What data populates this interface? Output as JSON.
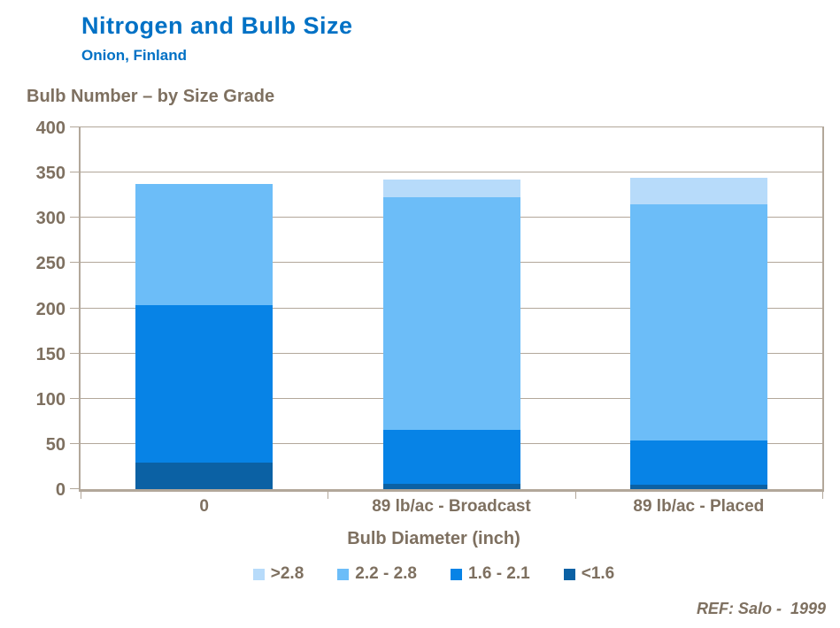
{
  "header": {
    "title": "Nitrogen and Bulb Size",
    "subtitle": "Onion, Finland"
  },
  "chart_title": "Bulb Number – by Size Grade",
  "footer": {
    "ref": "REF: Salo -  1999"
  },
  "colors": {
    "title_blue": "#0071C5",
    "label_brown": "#7E7060",
    "grid": "#B2A79A",
    "background": "#FFFFFF"
  },
  "chart_data": {
    "type": "bar",
    "stacked": true,
    "title": "Bulb Number – by Size Grade",
    "categories": [
      "0",
      "89 lb/ac - Broadcast",
      "89 lb/ac - Placed"
    ],
    "series": [
      {
        "name": "<1.6",
        "color": "#0B61A4",
        "values": [
          29,
          6,
          5
        ]
      },
      {
        "name": "1.6 - 2.1",
        "color": "#0783E6",
        "values": [
          174,
          60,
          49
        ]
      },
      {
        "name": "2.2 - 2.8",
        "color": "#6CBDF8",
        "values": [
          134,
          257,
          261
        ]
      },
      {
        "name": ">2.8",
        "color": "#B7DBFA",
        "values": [
          0,
          19,
          29
        ]
      }
    ],
    "totals": [
      337,
      342,
      344
    ],
    "legend_order": [
      ">2.8",
      "2.2 - 2.8",
      "1.6 - 2.1",
      "<1.6"
    ],
    "legend_position": "bottom",
    "xlabel": "Bulb Diameter (inch)",
    "ylabel": "",
    "ylim": [
      0,
      400
    ],
    "ytick_step": 50,
    "grid": true
  }
}
